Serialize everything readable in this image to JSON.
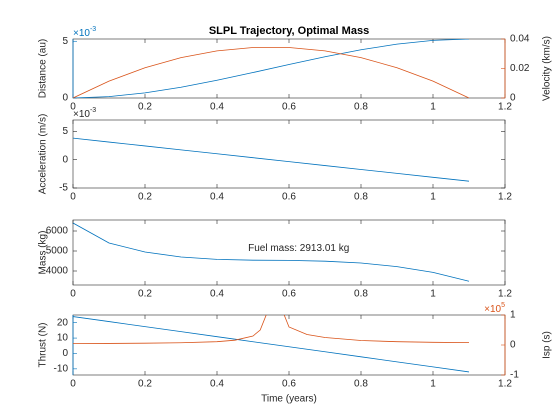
{
  "chart_data": [
    {
      "type": "line",
      "title": "SLPL Trajectory, Optimal Mass",
      "x": [
        0,
        0.1,
        0.2,
        0.3,
        0.4,
        0.5,
        0.6,
        0.7,
        0.8,
        0.9,
        1.0,
        1.1
      ],
      "xlim": [
        0,
        1.2
      ],
      "xticks": [
        0,
        0.2,
        0.4,
        0.6,
        0.8,
        1,
        1.2
      ],
      "ylabel": "Distance (au)",
      "ycolor": "#0072BD",
      "ylim": [
        0,
        0.0052
      ],
      "yticks": [
        0,
        {
          "value": 0.005,
          "label": "5"
        }
      ],
      "yexp": {
        "base": "×10",
        "power": "-3"
      },
      "y2label": "Velocity (km/s)",
      "y2color": "#D95319",
      "y2lim": [
        0,
        0.04
      ],
      "y2ticks": [
        0,
        0.02,
        0.04
      ],
      "series": [
        {
          "color": "#0072BD",
          "values": [
            0,
            0.000121,
            0.000453,
            0.000949,
            0.001563,
            0.002246,
            0.002954,
            0.003637,
            0.004251,
            0.004745,
            0.005079,
            0.0052
          ]
        },
        {
          "color": "#D95319",
          "axis": "y2",
          "values": [
            0,
            0.01141,
            0.02053,
            0.02737,
            0.03193,
            0.03422,
            0.03422,
            0.03193,
            0.02737,
            0.02053,
            0.01141,
            0
          ]
        }
      ]
    },
    {
      "type": "line",
      "x": [
        0,
        0.1,
        0.2,
        0.3,
        0.4,
        0.5,
        0.6,
        0.7,
        0.8,
        0.9,
        1.0,
        1.1
      ],
      "xlim": [
        0,
        1.2
      ],
      "xticks": [
        0,
        0.2,
        0.4,
        0.6,
        0.8,
        1,
        1.2
      ],
      "ylabel": "Acceleration (m/s)",
      "ycolor": "#262626",
      "ylim": [
        -0.005,
        0.007
      ],
      "yticks": [
        {
          "value": -0.005,
          "label": "-5"
        },
        0,
        {
          "value": 0.005,
          "label": "5"
        }
      ],
      "yexp": {
        "base": "×10",
        "power": "-3"
      },
      "series": [
        {
          "color": "#0072BD",
          "values": [
            0.0038,
            0.00311,
            0.00242,
            0.00173,
            0.00104,
            0.00035,
            -0.00035,
            -0.00104,
            -0.00173,
            -0.00242,
            -0.00311,
            -0.0038
          ]
        }
      ]
    },
    {
      "type": "line",
      "x": [
        0,
        0.1,
        0.2,
        0.3,
        0.4,
        0.5,
        0.6,
        0.7,
        0.8,
        0.9,
        1.0,
        1.1
      ],
      "xlim": [
        0,
        1.2
      ],
      "xticks": [
        0,
        0.2,
        0.4,
        0.6,
        0.8,
        1,
        1.2
      ],
      "ylabel": "Mass (kg)",
      "ycolor": "#262626",
      "ylim": [
        3300,
        6550
      ],
      "yticks": [
        4000,
        5000,
        6000
      ],
      "annotation": "Fuel mass: 2913.01 kg",
      "series": [
        {
          "color": "#0072BD",
          "values": [
            6400,
            5400,
            4950,
            4700,
            4580,
            4540,
            4530,
            4490,
            4400,
            4220,
            3930,
            3487
          ]
        }
      ]
    },
    {
      "type": "line",
      "xlabel": "Time (years)",
      "x": [
        0,
        0.1,
        0.2,
        0.3,
        0.4,
        0.45,
        0.5,
        0.52,
        0.54,
        0.55,
        0.58,
        0.6,
        0.65,
        0.7,
        0.8,
        0.9,
        1.0,
        1.1
      ],
      "xlim": [
        0,
        1.2
      ],
      "xticks": [
        0,
        0.2,
        0.4,
        0.6,
        0.8,
        1,
        1.2
      ],
      "ylabel": "Thrust (N)",
      "ycolor": "#0072BD",
      "ylim": [
        -14,
        25
      ],
      "yticks": [
        -10,
        0,
        10,
        20
      ],
      "y2label": "Isp (s)",
      "y2color": "#D95319",
      "y2lim": [
        -100000,
        100000
      ],
      "y2ticks": [
        {
          "value": -100000,
          "label": "-1"
        },
        0,
        {
          "value": 100000,
          "label": "1"
        }
      ],
      "y2exp": {
        "base": "×10",
        "power": "5"
      },
      "series": [
        {
          "color": "#0072BD",
          "values": [
            24,
            20.73,
            17.45,
            14.18,
            10.91,
            9.27,
            7.64,
            6.98,
            6.33,
            6,
            5.02,
            4.36,
            2.73,
            1.09,
            -2.18,
            -5.46,
            -8.73,
            -12
          ]
        },
        {
          "color": "#D95319",
          "axis": "y2",
          "values": [
            5000,
            5200,
            6000,
            7500,
            11000,
            16000,
            30000,
            50000,
            110000,
            null,
            120000,
            60000,
            35000,
            25000,
            15000,
            11000,
            9000,
            8000
          ]
        }
      ]
    }
  ]
}
